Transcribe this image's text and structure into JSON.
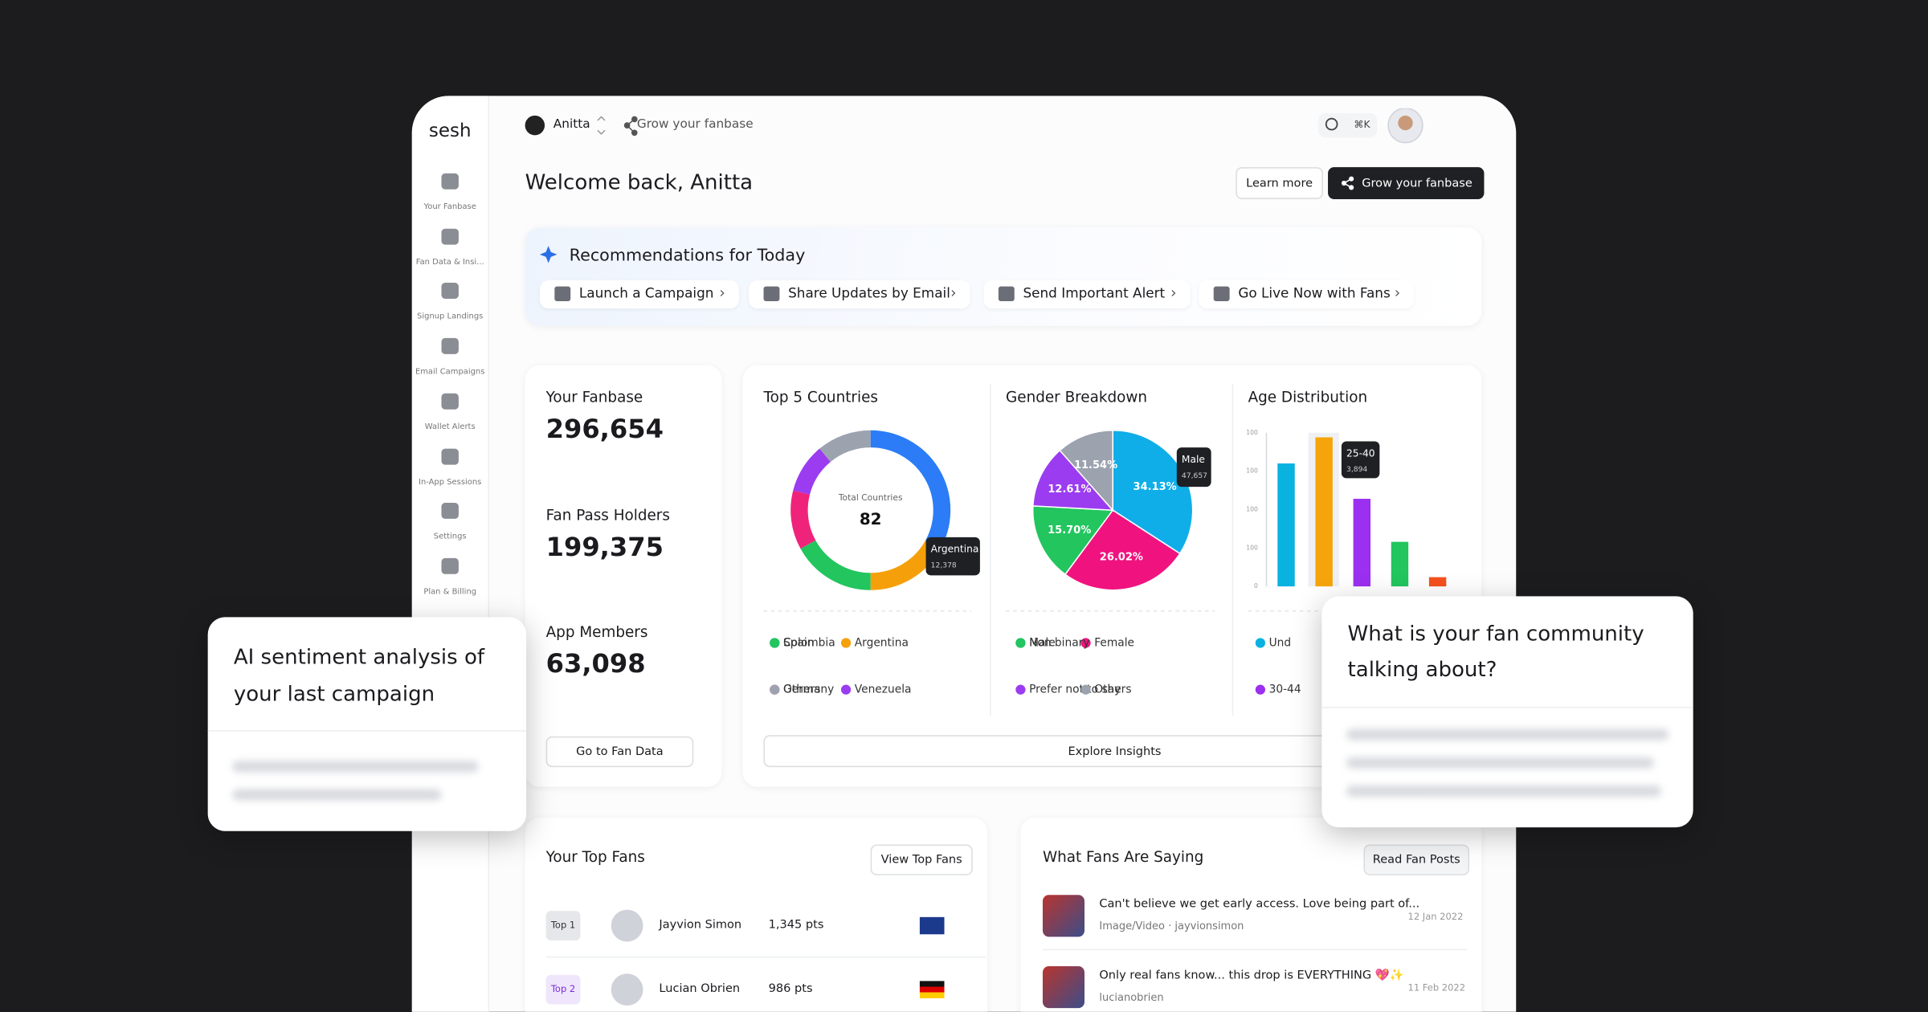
{
  "sidebar": {
    "logo": "sesh",
    "items": [
      "Your Fanbase",
      "Fan Data & Insi...",
      "Signup Landings",
      "Email Campaigns",
      "Wallet Alerts",
      "In-App Sessions",
      "Settings",
      "Plan & Billing"
    ]
  },
  "topbar": {
    "user": "Anitta",
    "link": "Grow your fanbase",
    "shortcut": "⌘K"
  },
  "header": {
    "title": "Welcome back, Anitta",
    "buttons": [
      "Learn more",
      "Grow your fanbase"
    ]
  },
  "recommendations": {
    "title": "Recommendations for Today",
    "items": [
      "Launch a Campaign",
      "Share Updates by Email",
      "Send Important Alert",
      "Go Live Now with Fans"
    ]
  },
  "stats": {
    "items": [
      {
        "label": "Your Fanbase",
        "value": "296,654"
      },
      {
        "label": "Fan Pass Holders",
        "value": "199,375"
      },
      {
        "label": "App Members",
        "value": "63,098"
      }
    ],
    "button": "Go to Fan Data"
  },
  "countries": {
    "title": "Top 5 Countries",
    "center_label": "Total Countries",
    "center_value": "82",
    "tooltip": {
      "name": "Argentina",
      "value": "12,378"
    },
    "segments": [
      {
        "name": "Colombia",
        "color": "#2b7cf6",
        "share": 33
      },
      {
        "name": "Argentina",
        "color": "#f5a00a",
        "share": 17
      },
      {
        "name": "Spain",
        "color": "#22c55e",
        "share": 17
      },
      {
        "name": "Germany",
        "color": "#f0237a",
        "share": 12
      },
      {
        "name": "Venezuela",
        "color": "#9b3cf0",
        "share": 10
      },
      {
        "name": "Others",
        "color": "#9ca3af",
        "share": 11
      }
    ]
  },
  "gender": {
    "title": "Gender Breakdown",
    "tooltip": {
      "name": "Male",
      "value": "47,657"
    },
    "slices": [
      {
        "name": "Male",
        "color": "#10aee8",
        "value": 34.13,
        "label": "34.13%"
      },
      {
        "name": "Female",
        "color": "#f0137f",
        "value": 26.02,
        "label": "26.02%"
      },
      {
        "name": "Non binary",
        "color": "#22c55e",
        "value": 15.7,
        "label": "15.70%"
      },
      {
        "name": "Prefer not to say",
        "color": "#9b3cf0",
        "value": 12.61,
        "label": "12.61%"
      },
      {
        "name": "Others",
        "color": "#9ca3af",
        "value": 11.54,
        "label": "11.54%"
      }
    ]
  },
  "age": {
    "title": "Age Distribution",
    "ylim": [
      0,
      100
    ],
    "yticks": [
      "100",
      "100",
      "100",
      "100",
      "0"
    ],
    "tooltip": {
      "name": "25-40",
      "value": "3,894"
    },
    "bars": [
      {
        "color": "#0ab2e0",
        "value": 80
      },
      {
        "color": "#f5a50a",
        "value": 97
      },
      {
        "color": "#9b30f0",
        "value": 57
      },
      {
        "color": "#22c55e",
        "value": 29
      },
      {
        "color": "#f4511e",
        "value": 6
      }
    ],
    "legend": [
      {
        "name": "Und",
        "color": "#0ab2e0"
      },
      {
        "name": "30-44",
        "color": "#9b30f0"
      }
    ]
  },
  "explore": "Explore Insights",
  "top_fans": {
    "title": "Your Top Fans",
    "button": "View Top Fans",
    "rows": [
      {
        "rank": "Top 1",
        "name": "Jayvion Simon",
        "points": "1,345 pts"
      },
      {
        "rank": "Top 2",
        "name": "Lucian Obrien",
        "points": "986 pts"
      }
    ]
  },
  "posts": {
    "title": "What Fans Are Saying",
    "button": "Read Fan Posts",
    "items": [
      {
        "text": "Can't believe we get early access. Love being part of...",
        "meta": "Image/Video · jayvionsimon",
        "date": "12 Jan 2022"
      },
      {
        "text": "Only real fans know... this drop is EVERYTHING 💖✨",
        "meta": "lucianobrien",
        "date": "11 Feb 2022"
      }
    ]
  },
  "overlays": [
    {
      "title": "AI sentiment analysis of your last campaign"
    },
    {
      "title": "What is your fan community talking about?"
    }
  ]
}
